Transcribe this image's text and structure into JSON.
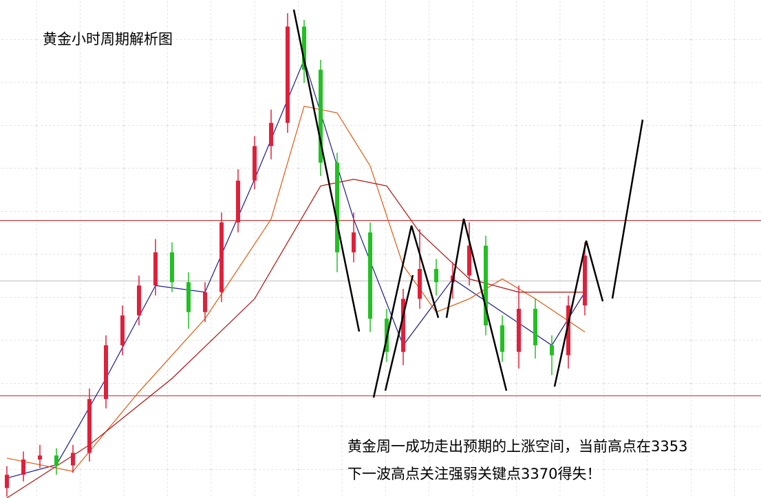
{
  "chart_data": {
    "type": "candlestick",
    "title": "黄金小时周期解析图",
    "annotations": [
      "黄金周一成功走出预期的上涨空间，当前高点在3353",
      "下一波高点关注强弱关键点3370得失！"
    ],
    "ylim": [
      3310,
      3385
    ],
    "up_color": "#e0203a",
    "down_color": "#22c022",
    "open": [
      3311.5,
      3313.5,
      3315.8,
      3316.4,
      3314.9,
      3316.8,
      3324.9,
      3333.0,
      3337.5,
      3342.0,
      3347.0,
      3342.5,
      3338.0,
      3341.0,
      3351.5,
      3357.8,
      3363.0,
      3366.5,
      3381.0,
      3374.5,
      3360.5,
      3347.0,
      3350.0,
      3337.0,
      3332.0,
      3340.0,
      3344.5,
      3342.5,
      3343.5,
      3348.0,
      3336.0,
      3332.0,
      3338.5,
      3333.0,
      3331.5,
      3339.0
    ],
    "high": [
      3314.8,
      3317.0,
      3318.0,
      3317.5,
      3318.0,
      3326.5,
      3334.5,
      3339.0,
      3343.5,
      3349.0,
      3348.5,
      3344.0,
      3342.5,
      3353.0,
      3359.5,
      3364.5,
      3368.5,
      3383.0,
      3382.0,
      3376.0,
      3362.0,
      3353.0,
      3351.5,
      3338.5,
      3341.5,
      3350.5,
      3346.0,
      3345.5,
      3351.5,
      3349.5,
      3337.5,
      3342.0,
      3340.0,
      3334.5,
      3340.5,
      3348.5
    ],
    "low": [
      3310.2,
      3312.5,
      3314.5,
      3313.5,
      3313.8,
      3315.5,
      3323.5,
      3331.5,
      3336.0,
      3340.5,
      3341.0,
      3335.5,
      3336.5,
      3339.5,
      3350.0,
      3356.5,
      3361.0,
      3365.0,
      3372.5,
      3358.5,
      3344.0,
      3345.5,
      3335.0,
      3330.5,
      3330.0,
      3338.5,
      3340.5,
      3340.0,
      3342.0,
      3334.5,
      3330.5,
      3329.5,
      3331.0,
      3328.5,
      3329.5,
      3337.5
    ],
    "close": [
      3313.5,
      3315.8,
      3316.4,
      3314.9,
      3316.8,
      3324.9,
      3333.0,
      3337.5,
      3342.0,
      3347.0,
      3342.5,
      3338.0,
      3341.0,
      3351.5,
      3357.8,
      3363.0,
      3366.5,
      3381.0,
      3374.5,
      3360.5,
      3347.0,
      3350.0,
      3337.0,
      3332.0,
      3340.0,
      3344.5,
      3342.5,
      3343.5,
      3348.0,
      3336.0,
      3332.0,
      3338.5,
      3333.0,
      3331.5,
      3339.0,
      3346.5
    ],
    "lines": [
      {
        "color": "#1a1a8c",
        "x": [
          0,
          3,
          6,
          9,
          12,
          15,
          18,
          21,
          24,
          27,
          30,
          33,
          35
        ],
        "values": [
          3313,
          3315,
          3328,
          3342,
          3341,
          3358,
          3376,
          3352,
          3333,
          3343,
          3338,
          3333,
          3341
        ]
      },
      {
        "color": "#e05a10",
        "x": [
          0,
          4,
          8,
          12,
          16,
          18,
          20,
          22,
          24,
          26,
          28,
          30,
          32,
          35
        ],
        "values": [
          3316,
          3314,
          3326,
          3337,
          3352,
          3369,
          3368,
          3360,
          3345,
          3338,
          3340,
          3343,
          3340,
          3335
        ]
      },
      {
        "color": "#b01010",
        "x": [
          0,
          5,
          10,
          15,
          19,
          21,
          23,
          25,
          28,
          31,
          35
        ],
        "values": [
          3310,
          3318,
          3328,
          3340,
          3357,
          3358,
          3357,
          3350,
          3343,
          3341,
          3341
        ]
      }
    ],
    "hlines": [
      {
        "value": 3351.8,
        "color": "#d02020"
      },
      {
        "value": 3325.4,
        "color": "#d02020"
      },
      {
        "value": 3342.7,
        "color": "#bbbbbb"
      }
    ]
  }
}
